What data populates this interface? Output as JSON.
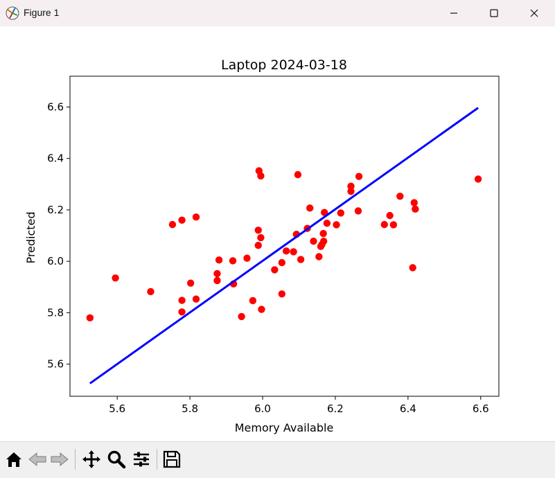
{
  "window": {
    "title": "Figure 1",
    "icons": {
      "app": "matplotlib-icon",
      "minimize": "minimize-icon",
      "maximize": "maximize-icon",
      "close": "close-icon"
    }
  },
  "toolbar": {
    "buttons": [
      "home-icon",
      "back-icon",
      "forward-icon",
      "pan-icon",
      "zoom-icon",
      "configure-icon",
      "save-icon"
    ]
  },
  "chart_data": {
    "type": "scatter",
    "title": "Laptop 2024-03-18",
    "xlabel": "Memory Available",
    "ylabel": "Predicted",
    "xlim": [
      5.47,
      6.65
    ],
    "ylim": [
      5.475,
      6.72
    ],
    "xticks": [
      "5.6",
      "5.8",
      "6.0",
      "6.2",
      "6.4",
      "6.6"
    ],
    "yticks": [
      "5.6",
      "5.8",
      "6.0",
      "6.2",
      "6.4",
      "6.6"
    ],
    "grid": false,
    "colors": {
      "points": "#ff0000",
      "line": "#0000ff"
    },
    "fit_line": {
      "x": [
        5.525,
        6.593
      ],
      "y": [
        5.525,
        6.597
      ]
    },
    "points": [
      [
        5.525,
        5.78
      ],
      [
        5.595,
        5.935
      ],
      [
        5.692,
        5.882
      ],
      [
        5.752,
        6.143
      ],
      [
        5.778,
        6.16
      ],
      [
        5.778,
        5.848
      ],
      [
        5.778,
        5.803
      ],
      [
        5.802,
        5.915
      ],
      [
        5.817,
        5.853
      ],
      [
        5.817,
        6.172
      ],
      [
        5.875,
        5.952
      ],
      [
        5.875,
        5.925
      ],
      [
        5.88,
        6.005
      ],
      [
        5.918,
        6.002
      ],
      [
        5.92,
        5.912
      ],
      [
        5.942,
        5.785
      ],
      [
        5.957,
        6.012
      ],
      [
        5.973,
        5.847
      ],
      [
        5.988,
        6.121
      ],
      [
        5.988,
        6.062
      ],
      [
        5.99,
        6.352
      ],
      [
        5.995,
        6.332
      ],
      [
        5.995,
        6.092
      ],
      [
        5.997,
        5.813
      ],
      [
        6.033,
        5.967
      ],
      [
        6.053,
        5.873
      ],
      [
        6.053,
        5.995
      ],
      [
        6.065,
        6.04
      ],
      [
        6.085,
        6.037
      ],
      [
        6.093,
        6.105
      ],
      [
        6.097,
        6.337
      ],
      [
        6.105,
        6.007
      ],
      [
        6.123,
        6.128
      ],
      [
        6.13,
        6.207
      ],
      [
        6.14,
        6.078
      ],
      [
        6.155,
        6.018
      ],
      [
        6.16,
        6.058
      ],
      [
        6.163,
        6.065
      ],
      [
        6.167,
        6.108
      ],
      [
        6.168,
        6.078
      ],
      [
        6.17,
        6.19
      ],
      [
        6.177,
        6.148
      ],
      [
        6.203,
        6.142
      ],
      [
        6.215,
        6.188
      ],
      [
        6.243,
        6.272
      ],
      [
        6.243,
        6.292
      ],
      [
        6.263,
        6.196
      ],
      [
        6.265,
        6.33
      ],
      [
        6.335,
        6.143
      ],
      [
        6.35,
        6.178
      ],
      [
        6.36,
        6.142
      ],
      [
        6.378,
        6.253
      ],
      [
        6.413,
        5.975
      ],
      [
        6.417,
        6.228
      ],
      [
        6.42,
        6.203
      ],
      [
        6.593,
        6.32
      ]
    ]
  }
}
